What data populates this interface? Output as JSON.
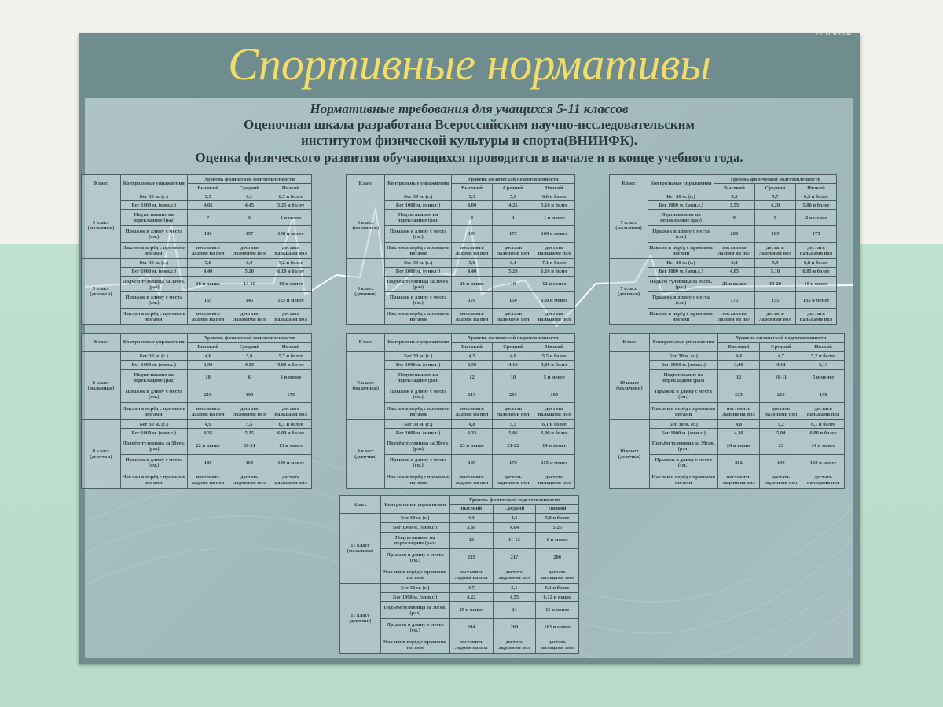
{
  "serial": "210130004",
  "title": "Спортивные нормативы",
  "header": {
    "line1": "Нормативные требования для учащихся 5-11 классов",
    "line2": "Оценочная шкала разработана Всероссийским научно-исследовательским",
    "line3": "институтом физической культуры и спорта(ВНИИФК).",
    "line4": "Оценка физического развития обучающихся проводится  в начале и в конце учебного года."
  },
  "table_header": {
    "class": "Класс",
    "exercises": "Контрольные упражнения",
    "level": "Уровень физической подготовленности",
    "levels": [
      "Высокий",
      "Средний",
      "Низкий"
    ]
  },
  "boys_exercises": [
    "Бег 30 м. (с.)",
    "Бег 1000 м. (мин.с.)",
    "Подтягивание на перекладине (раз)",
    "Прыжок в длину с места (см.)",
    "Наклон в перёд с прямыми ногами"
  ],
  "girls_exercises": [
    "Бег 30 м. (с.)",
    "Бег 1000 м. (мин.с.)",
    "Подъём туловища за 30сек. (раз)",
    "Прыжок в длину с места (см.)",
    "Наклон в перёд с прямыми ногами"
  ],
  "tables": [
    {
      "boys": {
        "class": "5 класс (мальчики)",
        "rows": [
          [
            "5,5",
            "6,1",
            "6,5 и более"
          ],
          [
            "4,05",
            "4,45",
            "5,25 и более"
          ],
          [
            "7",
            "3",
            "1 и менее"
          ],
          [
            "180",
            "157",
            "138 и менее"
          ],
          [
            "поставить ладони на пол",
            "достать ладонями пол",
            "достать пальцами пол"
          ]
        ]
      },
      "girls": {
        "class": "5 класс (девочки)",
        "rows": [
          [
            "5,8",
            "6,9",
            "7,2 и более"
          ],
          [
            "4,40",
            "5,20",
            "6,10 и более"
          ],
          [
            "18 и выше",
            "14-15",
            "10 и менее"
          ],
          [
            "165",
            "145",
            "125 и менее"
          ],
          [
            "поставить ладони на пол",
            "достать ладонями пол",
            "достать пальцами пол"
          ]
        ]
      }
    },
    {
      "boys": {
        "class": "6 класс (мальчики)",
        "rows": [
          [
            "5,3",
            "5,9",
            "6,0 и более"
          ],
          [
            "4,00",
            "4,25",
            "5,10 и более"
          ],
          [
            "8",
            "4",
            "1 и менее"
          ],
          [
            "195",
            "175",
            "160 и менее"
          ],
          [
            "поставить ладони на пол",
            "достать ладонями пол",
            "достать пальцами пол"
          ]
        ]
      },
      "girls": {
        "class": "6 класс (девочки)",
        "rows": [
          [
            "5,6",
            "6,1",
            "7,1 и более"
          ],
          [
            "4,40",
            "5,20",
            "6,10 и более"
          ],
          [
            "20 и выше",
            "19",
            "12 и менее"
          ],
          [
            "170",
            "150",
            "130 и менее"
          ],
          [
            "поставить ладони на пол",
            "достать ладонями пол",
            "достать пальцами пол"
          ]
        ]
      }
    },
    {
      "boys": {
        "class": "7 класс (мальчики)",
        "rows": [
          [
            "5,3",
            "5,7",
            "6,3 и более"
          ],
          [
            "3,55",
            "4,20",
            "5,00 и более"
          ],
          [
            "9",
            "5",
            "2 и менее"
          ],
          [
            "200",
            "185",
            "175"
          ],
          [
            "поставить ладони на пол",
            "достать ладонями пол",
            "достать пальцами пол"
          ]
        ]
      },
      "girls": {
        "class": "7 класс (девочки)",
        "rows": [
          [
            "5,4",
            "5,9",
            "6,8 и более"
          ],
          [
            "4,05",
            "5,10",
            "6,05 и более"
          ],
          [
            "21 и выше",
            "19-20",
            "15 и менее"
          ],
          [
            "175",
            "155",
            "135 и менее"
          ],
          [
            "поставить ладони на пол",
            "достать ладонями пол",
            "достать пальцами пол"
          ]
        ]
      }
    },
    {
      "boys": {
        "class": "8 класс (мальчики)",
        "rows": [
          [
            "4,6",
            "5,0",
            "5,7 и более"
          ],
          [
            "3,50",
            "4,15",
            "5,00 и более"
          ],
          [
            "10",
            "6",
            "3 и менее"
          ],
          [
            "210",
            "195",
            "175"
          ],
          [
            "поставить ладони на пол",
            "достать ладонями пол",
            "достать пальцами пол"
          ]
        ]
      },
      "girls": {
        "class": "8 класс (девочки)",
        "rows": [
          [
            "4,9",
            "5,5",
            "6,1 и более"
          ],
          [
            "4,35",
            "5,15",
            "6,00 и более"
          ],
          [
            "22 и выше",
            "20-21",
            "13 и менее"
          ],
          [
            "188",
            "160",
            "140 и менее"
          ],
          [
            "поставить ладони на пол",
            "достать ладонями пол",
            "достать пальцами пол"
          ]
        ]
      }
    },
    {
      "boys": {
        "class": "9 класс (мальчики)",
        "rows": [
          [
            "4,5",
            "4,8",
            "5,5 и более"
          ],
          [
            "3,50",
            "4,10",
            "5,00 и более"
          ],
          [
            "12",
            "10",
            "5 и менее"
          ],
          [
            "217",
            "205",
            "180"
          ],
          [
            "поставить ладони на пол",
            "достать ладонями пол",
            "достать пальцами пол"
          ]
        ]
      },
      "girls": {
        "class": "9 класс (девочки)",
        "rows": [
          [
            "4,8",
            "5,3",
            "6,1 и более"
          ],
          [
            "4,33",
            "5,06",
            "6,00 и более"
          ],
          [
            "23 и выше",
            "21-22",
            "14 и менее"
          ],
          [
            "195",
            "170",
            "155 и менее"
          ],
          [
            "поставить ладони на пол",
            "достать ладонями пол",
            "достать пальцами пол"
          ]
        ]
      }
    },
    {
      "boys": {
        "class": "10 класс (мальчики)",
        "rows": [
          [
            "4,4",
            "4,7",
            "5,2 и более"
          ],
          [
            "3,40",
            "4,14",
            "5,15"
          ],
          [
            "12",
            "10-11",
            "5 и менее"
          ],
          [
            "225",
            "210",
            "190"
          ],
          [
            "поставить ладони на пол",
            "достать ладонями пол",
            "достать пальцами пол"
          ]
        ]
      },
      "girls": {
        "class": "10 класс (девочки)",
        "rows": [
          [
            "4,8",
            "5,2",
            "6,1 и более"
          ],
          [
            "4,30",
            "5,04",
            "6,00 и более"
          ],
          [
            "24 и выше",
            "23",
            "14 и менее"
          ],
          [
            "202",
            "190",
            "160 и менее"
          ],
          [
            "поставить ладони на пол",
            "достать ладонями пол",
            "достать пальцами пол"
          ]
        ]
      }
    },
    {
      "boys": {
        "class": "11 класс (мальчики)",
        "rows": [
          [
            "4,3",
            "4,6",
            "5,0 и более"
          ],
          [
            "3,30",
            "4,04",
            "5,26"
          ],
          [
            "13",
            "11-12",
            "6 и менее"
          ],
          [
            "235",
            "217",
            "200"
          ],
          [
            "поставить ладони на пол",
            "достать ладонями пол",
            "достать пальцами пол"
          ]
        ]
      },
      "girls": {
        "class": "11 класс (девочки)",
        "rows": [
          [
            "4,7",
            "5,1",
            "6,1 и более"
          ],
          [
            "4,22",
            "4,55",
            "6,12 и выше"
          ],
          [
            "25 и выше",
            "24",
            "15 и менее"
          ],
          [
            "204",
            "200",
            "163 и менее"
          ],
          [
            "поставить ладони на пол",
            "достать ладонями пол",
            "достать пальцами пол"
          ]
        ]
      }
    }
  ]
}
